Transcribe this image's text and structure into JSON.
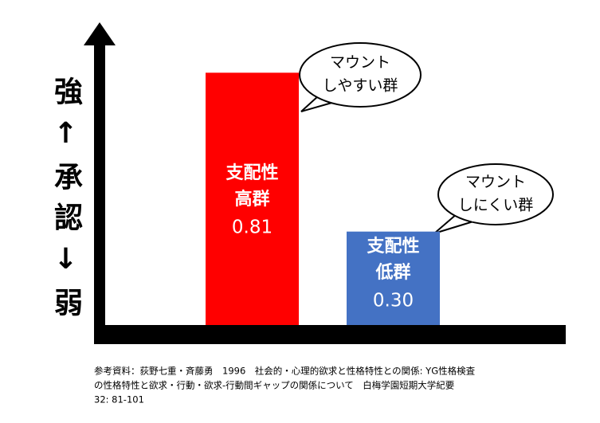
{
  "chart_data": {
    "type": "bar",
    "y_label": "強↑承認↓弱",
    "categories": [
      [
        "支配性",
        "高群"
      ],
      [
        "支配性",
        "低群"
      ]
    ],
    "values": [
      0.81,
      0.3
    ],
    "value_labels": [
      "0.81",
      "0.30"
    ],
    "colors": [
      "#ff0000",
      "#4472c4"
    ],
    "ylim": [
      0,
      1
    ],
    "annotations": [
      [
        "マウント",
        "しやすい群"
      ],
      [
        "マウント",
        "しにくい群"
      ]
    ],
    "source": [
      "参考資料：荻野七重・斉藤勇　1996　社会的・心理的欲求と性格特性との関係: YG性格検査",
      "の性格特性と欲求・行動・欲求-行動間ギャップの関係について　白梅学園短期大学紀要",
      "32: 81-101"
    ]
  }
}
